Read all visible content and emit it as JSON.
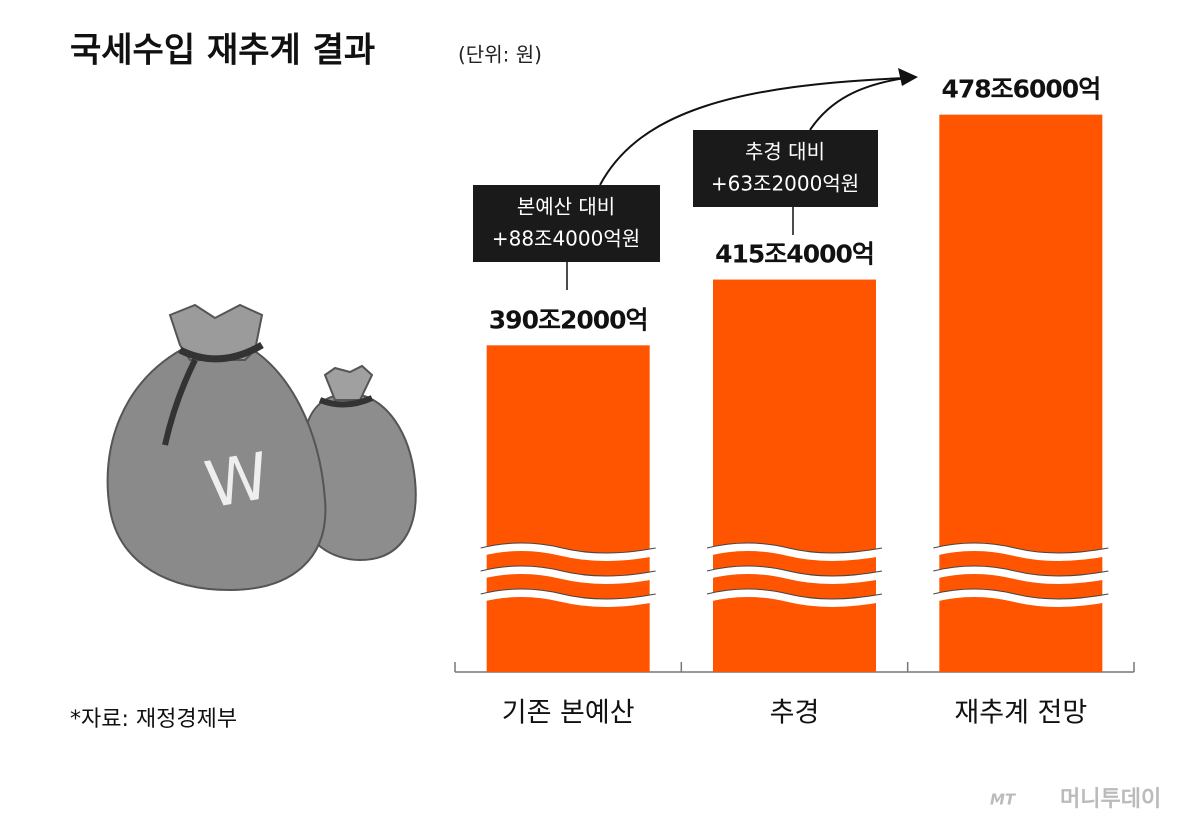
{
  "chart_data": {
    "type": "bar",
    "title": "국세수입 재추계 결과",
    "subtitle": "(단위: 원)",
    "categories": [
      "기존 본예산",
      "추경",
      "재추계 전망"
    ],
    "values": [
      390.2,
      415.4,
      478.6
    ],
    "value_labels": [
      "390조2000억",
      "415조4000억",
      "478조6000억"
    ],
    "color": "#ff5500",
    "ylim": [
      265,
      480
    ],
    "annotations": [
      {
        "lines": [
          "본예산 대비",
          "+88조4000억원"
        ]
      },
      {
        "lines": [
          "추경 대비",
          "+63조2000억원"
        ]
      }
    ],
    "source": "*자료: 재정경제부",
    "illustration": {
      "symbol": "W"
    },
    "watermark": {
      "logo": "MT",
      "name": "머니투데이"
    }
  }
}
